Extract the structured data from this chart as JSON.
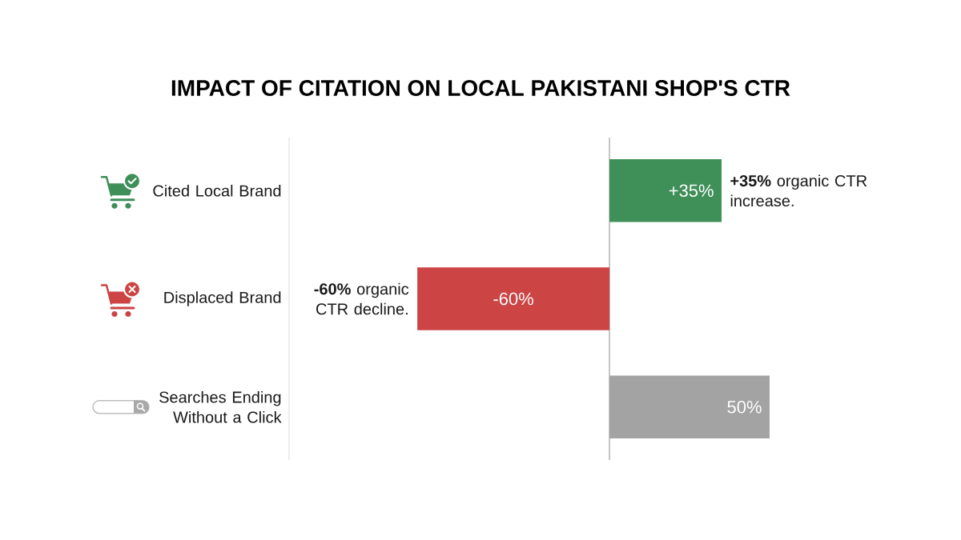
{
  "chart_data": {
    "type": "bar",
    "orientation": "horizontal",
    "title": "IMPACT OF CITATION ON LOCAL PAKISTANI SHOP'S CTR",
    "categories": [
      "Cited Local Brand",
      "Displaced Brand",
      "Searches Ending Without a Click"
    ],
    "values": [
      35,
      -60,
      50
    ],
    "colors": [
      "#3f8f58",
      "#cc4444",
      "#a3a3a3"
    ],
    "value_labels": [
      "+35%",
      "-60%",
      "50%"
    ],
    "annotations": [
      {
        "text": "**+35%** organic CTR increase.",
        "x": 35,
        "y": "Cited Local Brand"
      },
      {
        "text": "**-60%** organic CTR decline.",
        "x": -60,
        "y": "Displaced Brand"
      }
    ],
    "ref_lines": [
      {
        "axis": "x",
        "value": 0,
        "color": "#9e9e9e"
      }
    ],
    "tick_labels": "y"
  }
}
